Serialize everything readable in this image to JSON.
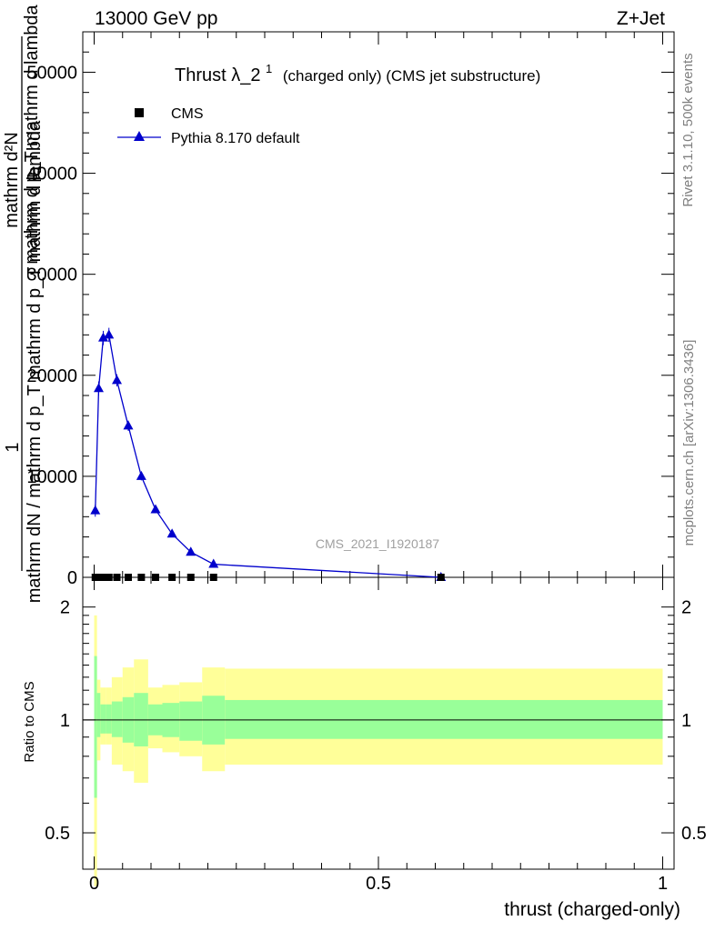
{
  "header": {
    "left": "13000 GeV pp",
    "right": "Z+Jet"
  },
  "title": {
    "main": "Thrust λ_2",
    "sup": "1",
    "tail": "(charged only) (CMS jet substructure)"
  },
  "side_labels": {
    "rivet": "Rivet 3.1.10,  500k events",
    "mcplots": "mcplots.cern.ch [arXiv:1306.3436]"
  },
  "watermark": "CMS_2021_I1920187",
  "ylabel_main": {
    "numerator": "1",
    "denominator": "mathrm dN / mathrm d p_T mathrm d p_T mathrm d lambda",
    "line_a": "mathrm d²N",
    "line_b": "mathrm d p_T mathrm d lambda"
  },
  "ylabel_ratio": "Ratio to CMS",
  "xlabel": "thrust (charged-only)",
  "colors": {
    "mc": "#0000cc",
    "band_inner": "#99ff99",
    "band_outer": "#ffff99",
    "data": "#000000"
  },
  "chart_data": {
    "type": "line",
    "x_ticks": [
      "0",
      "0.5",
      "1"
    ],
    "y_ticks_main": [
      "0",
      "10000",
      "20000",
      "30000",
      "40000",
      "50000"
    ],
    "y_ticks_ratio": [
      "0.5",
      "1",
      "2"
    ],
    "xlim": [
      -0.02,
      1.02
    ],
    "ylim_main": [
      0,
      54000
    ],
    "ylim_ratio": [
      0.4,
      2.4
    ],
    "legend_position": "top-left",
    "series": [
      {
        "name": "CMS",
        "marker": "square",
        "x": [
          0.002,
          0.008,
          0.016,
          0.026,
          0.04,
          0.06,
          0.083,
          0.108,
          0.137,
          0.17,
          0.21,
          0.61
        ],
        "y": [
          0,
          0,
          0,
          0,
          0,
          0,
          0,
          0,
          0,
          0,
          0,
          0
        ]
      },
      {
        "name": "Pythia 8.170 default",
        "marker": "triangle",
        "x": [
          0.002,
          0.008,
          0.016,
          0.026,
          0.04,
          0.06,
          0.083,
          0.108,
          0.137,
          0.17,
          0.21,
          0.61
        ],
        "y": [
          6600,
          18700,
          23700,
          24000,
          19500,
          15000,
          10000,
          6700,
          4300,
          2500,
          1300,
          0
        ],
        "yerr": [
          600,
          700,
          700,
          700,
          600,
          500,
          400,
          300,
          250,
          200,
          150,
          50
        ]
      }
    ],
    "ratio": {
      "reference": 1.0,
      "bin_edges": [
        0.0,
        0.005,
        0.011,
        0.021,
        0.031,
        0.05,
        0.07,
        0.095,
        0.12,
        0.15,
        0.19,
        0.23,
        1.0
      ],
      "inner_lo": [
        0.62,
        0.9,
        0.92,
        0.92,
        0.9,
        0.87,
        0.85,
        0.91,
        0.9,
        0.88,
        0.86,
        0.89
      ],
      "inner_hi": [
        1.48,
        1.18,
        1.1,
        1.1,
        1.12,
        1.15,
        1.18,
        1.1,
        1.11,
        1.12,
        1.16,
        1.13
      ],
      "outer_lo": [
        0.36,
        0.78,
        0.86,
        0.86,
        0.76,
        0.73,
        0.68,
        0.84,
        0.82,
        0.8,
        0.73,
        0.76
      ],
      "outer_hi": [
        1.9,
        1.28,
        1.22,
        1.22,
        1.3,
        1.38,
        1.45,
        1.22,
        1.24,
        1.26,
        1.38,
        1.37
      ]
    }
  }
}
